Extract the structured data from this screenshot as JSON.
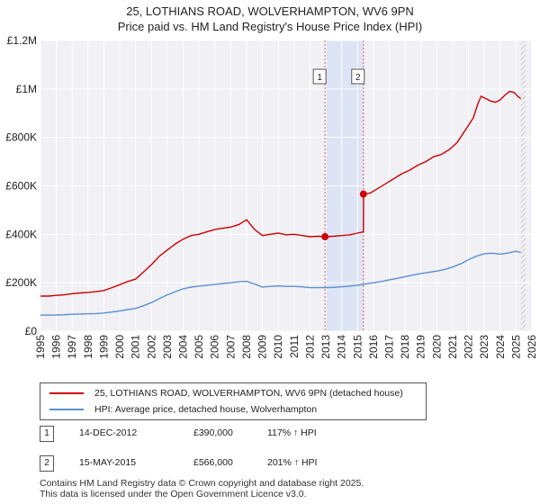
{
  "header": {
    "title_line1": "25, LOTHIANS ROAD, WOLVERHAMPTON, WV6 9PN",
    "title_line2": "Price paid vs. HM Land Registry's House Price Index (HPI)"
  },
  "chart_data": {
    "type": "line",
    "title": "25, LOTHIANS ROAD, WOLVERHAMPTON, WV6 9PN — Price paid vs. HM Land Registry's House Price Index (HPI)",
    "xlim": [
      1995,
      2026
    ],
    "ylim": [
      0,
      1200000
    ],
    "grid": true,
    "x_ticks": [
      1995,
      1996,
      1997,
      1998,
      1999,
      2000,
      2001,
      2002,
      2003,
      2004,
      2005,
      2006,
      2007,
      2008,
      2009,
      2010,
      2011,
      2012,
      2013,
      2014,
      2015,
      2016,
      2017,
      2018,
      2019,
      2020,
      2021,
      2022,
      2023,
      2024,
      2025,
      2026
    ],
    "x_tick_labels": [
      "1995",
      "1996",
      "1997",
      "1998",
      "1999",
      "2000",
      "2001",
      "2002",
      "2003",
      "2004",
      "2005",
      "2006",
      "2007",
      "2008",
      "2009",
      "2010",
      "2011",
      "2012",
      "2013",
      "2014",
      "2015",
      "2016",
      "2017",
      "2018",
      "2019",
      "2020",
      "2021",
      "2022",
      "2023",
      "2024",
      "2025",
      "2026"
    ],
    "y_ticks": [
      0,
      200000,
      400000,
      600000,
      800000,
      1000000,
      1200000
    ],
    "y_tick_labels": [
      "£0",
      "£200K",
      "£400K",
      "£600K",
      "£800K",
      "£1M",
      "£1.2M"
    ],
    "series": [
      {
        "name": "25, LOTHIANS ROAD, WOLVERHAMPTON, WV6 9PN (detached house)",
        "color": "#cc0000",
        "x": [
          1995,
          1995.5,
          1996,
          1996.5,
          1997,
          1997.5,
          1998,
          1998.5,
          1999,
          1999.5,
          2000,
          2000.5,
          2001,
          2001.5,
          2002,
          2002.5,
          2003,
          2003.5,
          2004,
          2004.5,
          2005,
          2005.5,
          2006,
          2006.5,
          2007,
          2007.5,
          2008,
          2008.5,
          2009,
          2009.5,
          2010,
          2010.5,
          2011,
          2011.5,
          2012,
          2012.5,
          2012.95,
          2013.5,
          2014,
          2014.5,
          2015,
          2015.37,
          2015.38,
          2015.8,
          2016.3,
          2016.8,
          2017.3,
          2017.8,
          2018.3,
          2018.8,
          2019.3,
          2019.8,
          2020.3,
          2020.8,
          2021.3,
          2021.8,
          2022.3,
          2022.6,
          2022.8,
          2023.1,
          2023.4,
          2023.7,
          2024.0,
          2024.3,
          2024.6,
          2024.9,
          2025.1,
          2025.3
        ],
        "values": [
          145000,
          145000,
          148000,
          150000,
          155000,
          158000,
          160000,
          163000,
          168000,
          180000,
          192000,
          205000,
          215000,
          245000,
          275000,
          310000,
          335000,
          360000,
          380000,
          395000,
          400000,
          410000,
          420000,
          425000,
          430000,
          440000,
          460000,
          420000,
          395000,
          400000,
          405000,
          398000,
          400000,
          395000,
          390000,
          392000,
          390000,
          392000,
          395000,
          398000,
          405000,
          410000,
          566000,
          570000,
          590000,
          610000,
          630000,
          650000,
          665000,
          685000,
          700000,
          720000,
          730000,
          750000,
          780000,
          830000,
          880000,
          940000,
          970000,
          960000,
          950000,
          945000,
          955000,
          975000,
          990000,
          985000,
          970000,
          960000
        ]
      },
      {
        "name": "HPI: Average price, detached house, Wolverhampton",
        "color": "#5b8fd0",
        "x": [
          1995,
          1995.5,
          1996,
          1996.5,
          1997,
          1997.5,
          1998,
          1998.5,
          1999,
          1999.5,
          2000,
          2000.5,
          2001,
          2001.5,
          2002,
          2002.5,
          2003,
          2003.5,
          2004,
          2004.5,
          2005,
          2005.5,
          2006,
          2006.5,
          2007,
          2007.5,
          2008,
          2008.5,
          2009,
          2009.5,
          2010,
          2010.5,
          2011,
          2011.5,
          2012,
          2012.5,
          2013,
          2013.5,
          2014,
          2014.5,
          2015,
          2015.5,
          2016,
          2016.5,
          2017,
          2017.5,
          2018,
          2018.5,
          2019,
          2019.5,
          2020,
          2020.5,
          2021,
          2021.5,
          2022,
          2022.5,
          2023,
          2023.5,
          2024,
          2024.5,
          2025,
          2025.3
        ],
        "values": [
          66000,
          66500,
          67000,
          68000,
          70000,
          71000,
          72000,
          73000,
          75000,
          79000,
          84000,
          89000,
          94000,
          105000,
          118000,
          135000,
          150000,
          163000,
          175000,
          182000,
          186000,
          190000,
          193000,
          197000,
          200000,
          204000,
          206000,
          195000,
          182000,
          185000,
          187000,
          185000,
          185000,
          183000,
          180000,
          180000,
          180000,
          181000,
          183000,
          186000,
          190000,
          195000,
          200000,
          205000,
          212000,
          218000,
          225000,
          232000,
          238000,
          243000,
          248000,
          255000,
          265000,
          278000,
          295000,
          310000,
          320000,
          322000,
          318000,
          323000,
          330000,
          325000
        ]
      }
    ],
    "annotations": [
      {
        "label": "1",
        "x": 2012.95,
        "y": 390000
      },
      {
        "label": "2",
        "x": 2015.37,
        "y": 566000
      }
    ],
    "shaded_span": [
      2012.95,
      2015.37
    ]
  },
  "legend": {
    "entries": [
      {
        "label": "25, LOTHIANS ROAD, WOLVERHAMPTON, WV6 9PN (detached house)",
        "color": "#cc0000"
      },
      {
        "label": "HPI: Average price, detached house, Wolverhampton",
        "color": "#5b8fd0"
      }
    ]
  },
  "transactions": [
    {
      "num": "1",
      "date": "14-DEC-2012",
      "price": "£390,000",
      "hpi": "117% ↑ HPI"
    },
    {
      "num": "2",
      "date": "15-MAY-2015",
      "price": "£566,000",
      "hpi": "201% ↑ HPI"
    }
  ],
  "footer": {
    "line1": "Contains HM Land Registry data © Crown copyright and database right 2025.",
    "line2": "This data is licensed under the Open Government Licence v3.0."
  }
}
